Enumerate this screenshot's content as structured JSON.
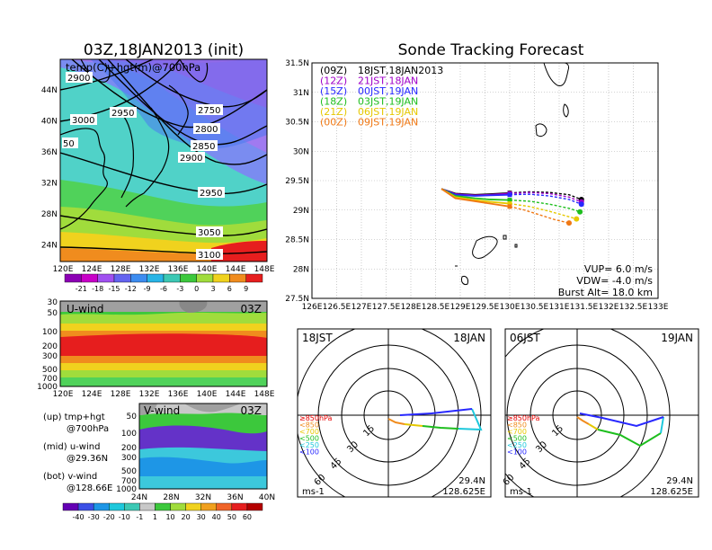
{
  "left": {
    "title": "03Z,18JAN2013 (init)",
    "map": {
      "label": "temp(C)+hgt(m)@700hPa",
      "lat_labels": [
        "44N",
        "40N",
        "36N",
        "32N",
        "28N",
        "24N"
      ],
      "lon_labels": [
        "120E",
        "124E",
        "128E",
        "132E",
        "136E",
        "140E",
        "144E",
        "148E"
      ],
      "contours": [
        "2900",
        "3000",
        "2950",
        "2750",
        "2800",
        "2850",
        "2900",
        "2950",
        "3050",
        "3100",
        "50"
      ],
      "colorbar_labels": [
        "-21",
        "-18",
        "-15",
        "-12",
        "-9",
        "-6",
        "-3",
        "0",
        "3",
        "6",
        "9"
      ]
    },
    "uwind": {
      "label": "U-wind",
      "time": "03Z",
      "p_labels": [
        "30",
        "50",
        "100",
        "200",
        "300",
        "500",
        "700",
        "1000"
      ],
      "x_labels": [
        "120E",
        "124E",
        "128E",
        "132E",
        "136E",
        "140E",
        "144E",
        "148E"
      ]
    },
    "vwind": {
      "label": "V-wind",
      "time": "03Z",
      "p_labels": [
        "50",
        "100",
        "200",
        "300",
        "500",
        "700",
        "1000"
      ],
      "x_labels": [
        "24N",
        "28N",
        "32N",
        "36N",
        "40N"
      ]
    },
    "legend": {
      "up1": "(up) tmp+hgt",
      "up2": "@700hPa",
      "mid1": "(mid) u-wind",
      "mid2": "@29.36N",
      "bot1": "(bot) v-wind",
      "bot2": "@128.66E"
    },
    "wind_colorbar_labels": [
      "-40",
      "-30",
      "-20",
      "-10",
      "-1",
      "1",
      "10",
      "20",
      "30",
      "40",
      "50",
      "60"
    ]
  },
  "right": {
    "title": "Sonde Tracking Forecast",
    "launch_legend": [
      {
        "code": "(09Z)",
        "time": "18JST,18JAN2013",
        "color": "#000000"
      },
      {
        "code": "(12Z)",
        "time": "21JST,18JAN",
        "color": "#a000c8"
      },
      {
        "code": "(15Z)",
        "time": "00JST,19JAN",
        "color": "#2828ff"
      },
      {
        "code": "(18Z)",
        "time": "03JST,19JAN",
        "color": "#1ebe1e"
      },
      {
        "code": "(21Z)",
        "time": "06JST,19JAN",
        "color": "#e6c800"
      },
      {
        "code": "(00Z)",
        "time": "09JST,19JAN",
        "color": "#f07814"
      }
    ],
    "params": {
      "vup": "VUP=  6.0  m/s",
      "vdw": "VDW= -4.0  m/s",
      "burst": "Burst Alt=  18.0  km"
    },
    "polar_rings": [
      "15",
      "30",
      "45",
      "60"
    ],
    "polar_pressure_labels": [
      {
        "text": "≥850hPa",
        "color": "#e60000"
      },
      {
        "text": "<850",
        "color": "#f08c1e"
      },
      {
        "text": "<700",
        "color": "#e6c800"
      },
      {
        "text": "<500",
        "color": "#1ebe1e"
      },
      {
        "text": "<250",
        "color": "#1ec8dc"
      },
      {
        "text": "<100",
        "color": "#2828ff"
      }
    ],
    "polar1": {
      "left": "18JST",
      "right": "18JAN",
      "lat": "29.4N",
      "lon": "128.625E",
      "unit": "ms-1"
    },
    "polar2": {
      "left": "06JST",
      "right": "19JAN",
      "lat": "29.4N",
      "lon": "128.625E",
      "unit": "ms-1"
    }
  },
  "chart_data": [
    {
      "type": "line",
      "title": "Sonde Tracking Forecast",
      "x_ticks": [
        "126E",
        "126.5E",
        "127E",
        "127.5E",
        "128E",
        "128.5E",
        "129E",
        "129.5E",
        "130E",
        "130.5E",
        "131E",
        "131.5E",
        "132E",
        "132.5E",
        "133E"
      ],
      "y_ticks": [
        "27.5N",
        "28N",
        "28.5N",
        "29N",
        "29.5N",
        "30N",
        "30.5N",
        "31N",
        "31.5N"
      ],
      "xlim": [
        126,
        133
      ],
      "ylim": [
        27.5,
        31.5
      ],
      "series": [
        {
          "name": "(09Z) 18JST,18JAN2013",
          "color": "#000000",
          "x": [
            128.62,
            128.9,
            129.3,
            129.6,
            130.0,
            130.4,
            130.8,
            131.2,
            131.45
          ],
          "y": [
            29.36,
            29.28,
            29.26,
            29.27,
            29.29,
            29.31,
            29.3,
            29.26,
            29.18
          ]
        },
        {
          "name": "(12Z) 21JST,18JAN",
          "color": "#a000c8",
          "x": [
            128.62,
            128.9,
            129.3,
            129.6,
            130.0,
            130.4,
            130.8,
            131.2,
            131.45
          ],
          "y": [
            29.36,
            29.27,
            29.25,
            29.26,
            29.28,
            29.3,
            29.28,
            29.22,
            29.14
          ]
        },
        {
          "name": "(15Z) 00JST,19JAN",
          "color": "#2828ff",
          "x": [
            128.62,
            128.9,
            129.3,
            129.6,
            130.0,
            130.4,
            130.8,
            131.2,
            131.45
          ],
          "y": [
            29.36,
            29.26,
            29.24,
            29.25,
            29.26,
            29.27,
            29.24,
            29.18,
            29.1
          ]
        },
        {
          "name": "(18Z) 03JST,19JAN",
          "color": "#1ebe1e",
          "x": [
            128.62,
            128.9,
            129.3,
            129.6,
            130.0,
            130.4,
            130.8,
            131.2,
            131.42
          ],
          "y": [
            29.36,
            29.24,
            29.2,
            29.18,
            29.17,
            29.15,
            29.1,
            29.03,
            28.97
          ]
        },
        {
          "name": "(21Z) 06JST,19JAN",
          "color": "#e6c800",
          "x": [
            128.62,
            128.9,
            129.3,
            129.6,
            130.0,
            130.4,
            130.8,
            131.1,
            131.35
          ],
          "y": [
            29.36,
            29.22,
            29.17,
            29.14,
            29.11,
            29.06,
            28.98,
            28.91,
            28.85
          ]
        },
        {
          "name": "(00Z) 09JST,19JAN",
          "color": "#f07814",
          "x": [
            128.62,
            128.9,
            129.3,
            129.6,
            130.0,
            130.3,
            130.6,
            130.9,
            131.2
          ],
          "y": [
            29.36,
            29.2,
            29.15,
            29.11,
            29.06,
            29.0,
            28.92,
            28.84,
            28.78
          ]
        }
      ]
    }
  ]
}
